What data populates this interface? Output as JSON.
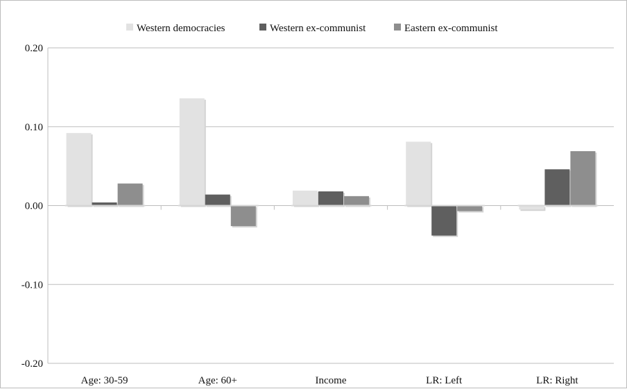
{
  "chart_data": {
    "type": "bar",
    "categories": [
      "Age: 30-59",
      "Age: 60+",
      "Income",
      "LR: Left",
      "LR: Right"
    ],
    "series": [
      {
        "name": "Western democracies",
        "color": "#e2e2e2",
        "values": [
          0.092,
          0.136,
          0.019,
          0.081,
          -0.005
        ]
      },
      {
        "name": "Western ex-communist",
        "color": "#5f5f5f",
        "values": [
          0.004,
          0.014,
          0.018,
          -0.038,
          0.046
        ]
      },
      {
        "name": "Eastern ex-communist",
        "color": "#8e8e8e",
        "values": [
          0.028,
          -0.026,
          0.012,
          -0.007,
          0.069
        ]
      }
    ],
    "yticks": [
      "0.20",
      "0.10",
      "0.00",
      "-0.10",
      "-0.20"
    ],
    "ylim": [
      -0.2,
      0.2
    ],
    "grid": true,
    "legend_position": "top-center",
    "title": "",
    "xlabel": "",
    "ylabel": ""
  }
}
